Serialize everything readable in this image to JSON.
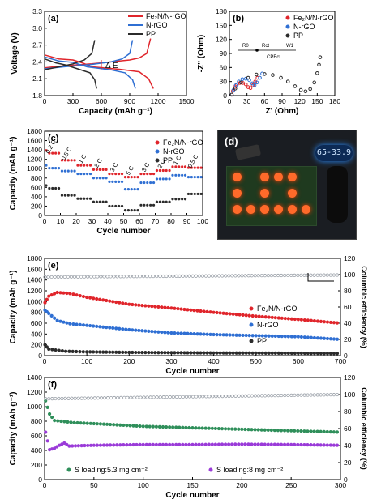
{
  "colors": {
    "fe2n": "#e0252b",
    "nrgo": "#2f6fd3",
    "pp": "#2b2b2b",
    "ce": "#9aa0a8",
    "s53": "#2f8f5a",
    "s8": "#9a3bd8"
  },
  "chart_data": [
    {
      "panel": "(a)",
      "type": "line",
      "xlabel": "Capacity (mAh g⁻¹)",
      "ylabel": "Voltage (V)",
      "xlim": [
        0,
        1500
      ],
      "ylim": [
        1.6,
        3.3
      ],
      "xticks": [
        "0",
        "300",
        "600",
        "900",
        "1200",
        "1500"
      ],
      "yticks": [
        "1.8",
        "2.1",
        "2.4",
        "2.7",
        "3.0",
        "3.3"
      ],
      "annotation": "Δ E",
      "series": [
        {
          "name": "Fe₂N/N-rGO",
          "color": "#e0252b",
          "discharge": [
            [
              0,
              2.42
            ],
            [
              150,
              2.34
            ],
            [
              300,
              2.32
            ],
            [
              400,
              2.26
            ],
            [
              500,
              2.18
            ],
            [
              800,
              2.13
            ],
            [
              1000,
              2.08
            ],
            [
              1100,
              1.94
            ],
            [
              1150,
              1.74
            ]
          ],
          "charge": [
            [
              0,
              2.16
            ],
            [
              200,
              2.2
            ],
            [
              500,
              2.24
            ],
            [
              700,
              2.28
            ],
            [
              900,
              2.32
            ],
            [
              1000,
              2.36
            ],
            [
              1080,
              2.45
            ],
            [
              1120,
              2.75
            ]
          ]
        },
        {
          "name": "N-rGO",
          "color": "#2f6fd3",
          "discharge": [
            [
              0,
              2.38
            ],
            [
              150,
              2.3
            ],
            [
              300,
              2.27
            ],
            [
              450,
              2.18
            ],
            [
              700,
              2.12
            ],
            [
              850,
              2.06
            ],
            [
              930,
              1.92
            ],
            [
              960,
              1.74
            ]
          ],
          "charge": [
            [
              0,
              2.14
            ],
            [
              200,
              2.18
            ],
            [
              500,
              2.23
            ],
            [
              700,
              2.28
            ],
            [
              820,
              2.34
            ],
            [
              900,
              2.45
            ],
            [
              930,
              2.72
            ]
          ]
        },
        {
          "name": "PP",
          "color": "#2b2b2b",
          "discharge": [
            [
              0,
              2.34
            ],
            [
              120,
              2.26
            ],
            [
              220,
              2.22
            ],
            [
              350,
              2.14
            ],
            [
              480,
              2.06
            ],
            [
              530,
              1.92
            ],
            [
              550,
              1.74
            ]
          ],
          "charge": [
            [
              0,
              2.12
            ],
            [
              150,
              2.18
            ],
            [
              300,
              2.24
            ],
            [
              420,
              2.32
            ],
            [
              500,
              2.45
            ],
            [
              530,
              2.72
            ]
          ]
        }
      ]
    },
    {
      "panel": "(b)",
      "type": "scatter",
      "xlabel": "Z' (Ohm)",
      "ylabel": "-Z'' (Ohm)",
      "xlim": [
        0,
        180
      ],
      "ylim": [
        0,
        180
      ],
      "xticks": [
        "0",
        "30",
        "60",
        "90",
        "120",
        "150",
        "180"
      ],
      "yticks": [
        "0",
        "15",
        "30",
        "45",
        "60",
        "75",
        "90",
        "105",
        "120",
        "135",
        "150",
        "165",
        "180"
      ],
      "circuit": [
        "R0",
        "Rct",
        "W1",
        "CPEct"
      ],
      "series": [
        {
          "name": "Fe₂N/N-rGO",
          "color": "#e0252b",
          "points": [
            [
              4,
              2
            ],
            [
              6,
              10
            ],
            [
              9,
              18
            ],
            [
              13,
              24
            ],
            [
              18,
              27
            ],
            [
              23,
              27
            ],
            [
              28,
              24
            ],
            [
              32,
              18
            ],
            [
              36,
              16
            ],
            [
              40,
              22
            ],
            [
              44,
              30
            ],
            [
              48,
              38
            ]
          ]
        },
        {
          "name": "N-rGO",
          "color": "#2f6fd3",
          "points": [
            [
              4,
              2
            ],
            [
              7,
              12
            ],
            [
              11,
              22
            ],
            [
              16,
              30
            ],
            [
              22,
              35
            ],
            [
              28,
              36
            ],
            [
              34,
              33
            ],
            [
              39,
              26
            ],
            [
              43,
              22
            ],
            [
              47,
              28
            ],
            [
              52,
              38
            ],
            [
              56,
              47
            ]
          ]
        },
        {
          "name": "PP",
          "color": "#2b2b2b",
          "points": [
            [
              4,
              2
            ],
            [
              10,
              15
            ],
            [
              20,
              28
            ],
            [
              32,
              38
            ],
            [
              46,
              45
            ],
            [
              60,
              46
            ],
            [
              74,
              44
            ],
            [
              88,
              38
            ],
            [
              100,
              30
            ],
            [
              112,
              20
            ],
            [
              122,
              12
            ],
            [
              130,
              9
            ],
            [
              138,
              14
            ],
            [
              145,
              28
            ],
            [
              150,
              48
            ],
            [
              153,
              66
            ],
            [
              155,
              82
            ]
          ]
        }
      ]
    },
    {
      "panel": "(c)",
      "type": "scatter",
      "xlabel": "Cycle number",
      "ylabel": "Capacity (mAh g⁻¹)",
      "xlim": [
        0,
        100
      ],
      "ylim": [
        0,
        1800
      ],
      "xticks": [
        "0",
        "10",
        "20",
        "30",
        "40",
        "50",
        "60",
        "70",
        "80",
        "90",
        "100"
      ],
      "yticks": [
        "0",
        "200",
        "400",
        "600",
        "800",
        "1000",
        "1200",
        "1400",
        "1600",
        "1800"
      ],
      "rates": [
        "0.2 C",
        "0.5 C",
        "1 C",
        "2 C",
        "3 C",
        "5 C",
        "3 C",
        "2 C",
        "1 C",
        "0.5 C"
      ],
      "series": [
        {
          "name": "Fe₂N/N-rGO",
          "color": "#e0252b",
          "levels": [
            1330,
            1180,
            1070,
            980,
            890,
            820,
            890,
            960,
            1040,
            1020
          ]
        },
        {
          "name": "N-rGO",
          "color": "#2f6fd3",
          "levels": [
            1010,
            950,
            890,
            800,
            720,
            560,
            700,
            780,
            860,
            820
          ]
        },
        {
          "name": "PP",
          "color": "#2b2b2b",
          "levels": [
            580,
            430,
            360,
            290,
            200,
            110,
            220,
            290,
            350,
            460
          ]
        }
      ]
    },
    {
      "panel": "(e)",
      "type": "scatter",
      "xlabel": "Cycle number",
      "ylabel": "Capacity (mAh g⁻¹)",
      "y2label": "Columbic efficiency (%)",
      "xlim": [
        0,
        700
      ],
      "ylim": [
        0,
        1800
      ],
      "y2lim": [
        0,
        120
      ],
      "xticks": [
        "0",
        "100",
        "200",
        "300",
        "400",
        "500",
        "600",
        "700"
      ],
      "yticks": [
        "0",
        "200",
        "400",
        "600",
        "800",
        "1000",
        "1200",
        "1400",
        "1600",
        "1800"
      ],
      "y2ticks": [
        "0",
        "20",
        "40",
        "60",
        "80",
        "100",
        "120"
      ],
      "series": [
        {
          "name": "Fe₂N/N-rGO",
          "color": "#e0252b",
          "points": [
            [
              1,
              980
            ],
            [
              10,
              1100
            ],
            [
              30,
              1170
            ],
            [
              60,
              1150
            ],
            [
              100,
              1080
            ],
            [
              200,
              950
            ],
            [
              300,
              880
            ],
            [
              400,
              800
            ],
            [
              500,
              730
            ],
            [
              600,
              670
            ],
            [
              700,
              600
            ]
          ]
        },
        {
          "name": "N-rGO",
          "color": "#2f6fd3",
          "points": [
            [
              1,
              840
            ],
            [
              10,
              780
            ],
            [
              30,
              650
            ],
            [
              60,
              590
            ],
            [
              100,
              560
            ],
            [
              200,
              480
            ],
            [
              300,
              420
            ],
            [
              400,
              390
            ],
            [
              500,
              370
            ],
            [
              600,
              350
            ],
            [
              700,
              300
            ]
          ]
        },
        {
          "name": "PP",
          "color": "#2b2b2b",
          "points": [
            [
              1,
              200
            ],
            [
              10,
              120
            ],
            [
              50,
              80
            ],
            [
              100,
              70
            ],
            [
              200,
              60
            ],
            [
              300,
              55
            ],
            [
              400,
              50
            ],
            [
              500,
              48
            ],
            [
              600,
              45
            ],
            [
              700,
              40
            ]
          ]
        },
        {
          "name": "CE",
          "color": "#9aa0a8",
          "axis": "right",
          "points": [
            [
              1,
              97
            ],
            [
              700,
              99.5
            ]
          ]
        }
      ]
    },
    {
      "panel": "(f)",
      "type": "scatter",
      "xlabel": "Cycle number",
      "ylabel": "Capacity (mAh g⁻¹)",
      "y2label": "Columbic efficiency (%)",
      "xlim": [
        0,
        300
      ],
      "ylim": [
        0,
        1400
      ],
      "y2lim": [
        0,
        120
      ],
      "xticks": [
        "0",
        "50",
        "100",
        "150",
        "200",
        "250",
        "300"
      ],
      "yticks": [
        "0",
        "200",
        "400",
        "600",
        "800",
        "1000",
        "1200",
        "1400"
      ],
      "y2ticks": [
        "0",
        "20",
        "40",
        "60",
        "80",
        "100",
        "120"
      ],
      "series": [
        {
          "name": "S loading:5.3 mg cm⁻²",
          "color": "#2f8f5a",
          "points": [
            [
              1,
              1080
            ],
            [
              5,
              900
            ],
            [
              10,
              810
            ],
            [
              30,
              780
            ],
            [
              60,
              760
            ],
            [
              100,
              730
            ],
            [
              150,
              710
            ],
            [
              200,
              690
            ],
            [
              250,
              670
            ],
            [
              300,
              650
            ]
          ]
        },
        {
          "name": "S loading:8 mg cm⁻²",
          "color": "#9a3bd8",
          "points": [
            [
              1,
              650
            ],
            [
              5,
              410
            ],
            [
              10,
              430
            ],
            [
              15,
              470
            ],
            [
              20,
              500
            ],
            [
              25,
              460
            ],
            [
              50,
              470
            ],
            [
              100,
              480
            ],
            [
              150,
              480
            ],
            [
              200,
              485
            ],
            [
              250,
              480
            ],
            [
              300,
              470
            ]
          ]
        },
        {
          "name": "CE",
          "color": "#9aa0a8",
          "axis": "right",
          "points": [
            [
              1,
              95
            ],
            [
              300,
              100
            ]
          ]
        }
      ]
    }
  ],
  "photo": {
    "panel": "(d)",
    "display_text": "65-33.9"
  }
}
